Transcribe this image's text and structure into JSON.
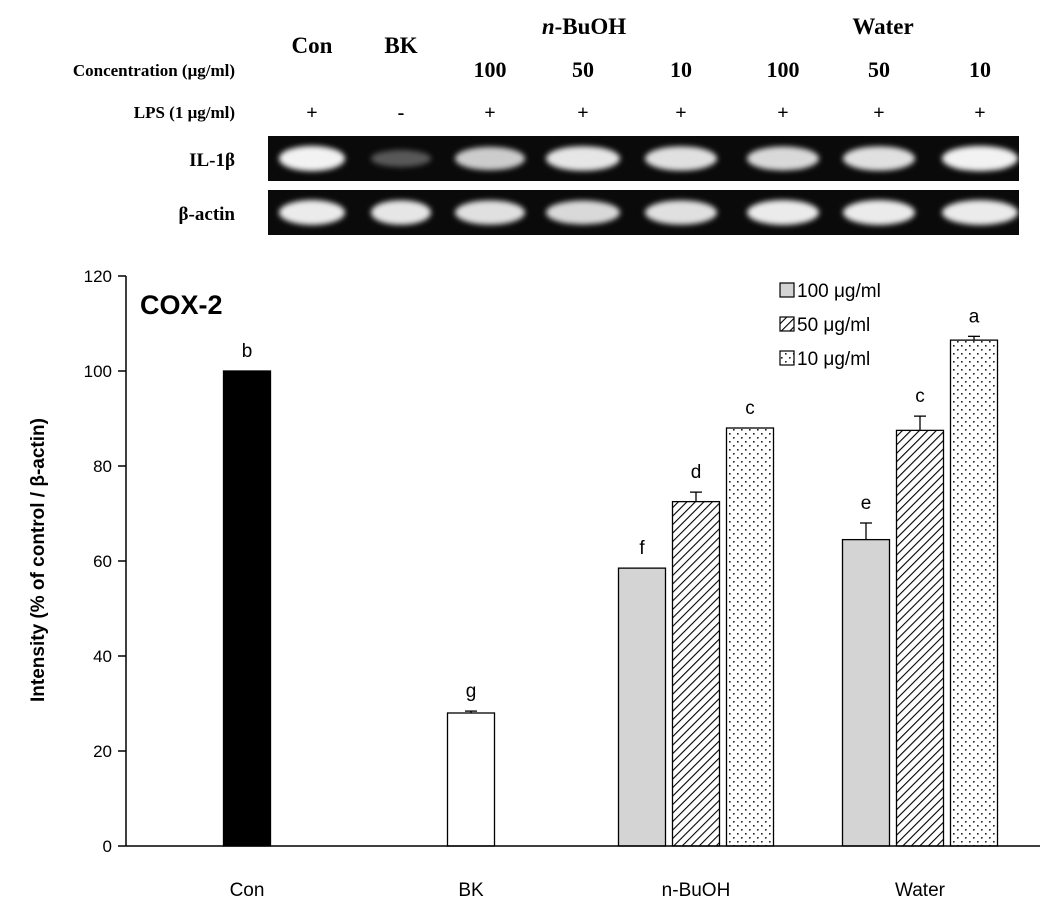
{
  "blot": {
    "concentration_label": "Concentration (μg/ml)",
    "lps_label": "LPS (1 μg/ml)",
    "groups": [
      {
        "label": "Con"
      },
      {
        "label": "BK"
      },
      {
        "label": "n-BuOH",
        "italic_part": "n",
        "rest": "-BuOH"
      },
      {
        "label": "Water"
      }
    ],
    "lanes": [
      {
        "concentration": "",
        "lps": "+"
      },
      {
        "concentration": "",
        "lps": "-"
      },
      {
        "concentration": "100",
        "lps": "+"
      },
      {
        "concentration": "50",
        "lps": "+"
      },
      {
        "concentration": "10",
        "lps": "+"
      },
      {
        "concentration": "100",
        "lps": "+"
      },
      {
        "concentration": "50",
        "lps": "+"
      },
      {
        "concentration": "10",
        "lps": "+"
      }
    ],
    "rows": [
      {
        "label": "IL-1β",
        "intensity": [
          0.95,
          0.35,
          0.8,
          0.9,
          0.88,
          0.85,
          0.88,
          0.95
        ]
      },
      {
        "label": "β-actin",
        "intensity": [
          0.92,
          0.9,
          0.88,
          0.85,
          0.88,
          0.92,
          0.92,
          0.92
        ]
      }
    ]
  },
  "chart_data": {
    "type": "bar",
    "title": "COX-2",
    "xlabel": "",
    "ylabel": "Intensity (% of control / β-actin)",
    "ylim": [
      0,
      120
    ],
    "yticks": [
      "0",
      "20",
      "40",
      "60",
      "80",
      "100",
      "120"
    ],
    "categories": [
      "Con",
      "BK",
      "n-BuOH",
      "Water"
    ],
    "legend_position": "top-right",
    "legend": [
      {
        "label": "100 μg/ml",
        "pattern": "gray"
      },
      {
        "label": "50 μg/ml",
        "pattern": "hatch"
      },
      {
        "label": "10 μg/ml",
        "pattern": "dots"
      }
    ],
    "bars": [
      {
        "category": "Con",
        "value": 100,
        "error": 0,
        "letter": "b",
        "pattern": "black"
      },
      {
        "category": "BK",
        "value": 28,
        "error": 0.4,
        "letter": "g",
        "pattern": "white"
      },
      {
        "category": "n-BuOH",
        "value": 58.5,
        "error": 0,
        "letter": "f",
        "pattern": "gray"
      },
      {
        "category": "n-BuOH",
        "value": 72.5,
        "error": 2,
        "letter": "d",
        "pattern": "hatch"
      },
      {
        "category": "n-BuOH",
        "value": 88,
        "error": 0,
        "letter": "c",
        "pattern": "dots"
      },
      {
        "category": "Water",
        "value": 64.5,
        "error": 3.5,
        "letter": "e",
        "pattern": "gray"
      },
      {
        "category": "Water",
        "value": 87.5,
        "error": 3,
        "letter": "c",
        "pattern": "hatch"
      },
      {
        "category": "Water",
        "value": 106.5,
        "error": 0.8,
        "letter": "a",
        "pattern": "dots"
      }
    ]
  }
}
